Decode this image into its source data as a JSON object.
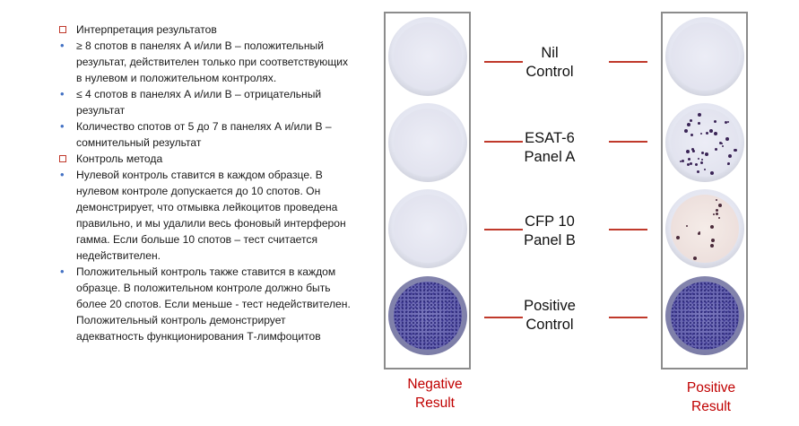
{
  "text_items": [
    {
      "type": "square",
      "text": "Интерпретация  результатов"
    },
    {
      "type": "dot",
      "text": "≥  8   спотов в панелях А и/или В – положительный результат, действителен только при  соответствующих в нулевом и положительном контролях."
    },
    {
      "type": "dot",
      "text": "≤ 4 спотов в панелях А и/или В – отрицательный результат"
    },
    {
      "type": "dot",
      "text": "Количество спотов от 5 до 7 в панелях А и/или В – сомнительный результат"
    },
    {
      "type": "square",
      "text": "Контроль метода"
    },
    {
      "type": "dot",
      "text": "Нулевой контроль ставится в каждом образце. В нулевом контроле допускается до 10 спотов. Он демонстрирует, что отмывка лейкоцитов проведена правильно, и мы удалили весь фоновый интерферон гамма. Если больше 10 спотов – тест  считается недействителен."
    },
    {
      "type": "dot",
      "text": "Положительный контроль также ставится в каждом образце. В  положительном контроле должно быть более 20 спотов. Если меньше  - тест недействителен. Положительный контроль демонстрирует адекватность функционирования Т-лимфоцитов"
    }
  ],
  "row_labels": [
    {
      "line1": "Nil",
      "line2": "Control"
    },
    {
      "line1": "ESAT-6",
      "line2": "Panel A"
    },
    {
      "line1": "CFP 10",
      "line2": "Panel B"
    },
    {
      "line1": "Positive",
      "line2": "Control"
    }
  ],
  "results": {
    "negative": {
      "line1": "Negative",
      "line2": "Result"
    },
    "positive": {
      "line1": "Positive",
      "line2": "Result"
    }
  },
  "colors": {
    "accent_red": "#c00000",
    "bullet_blue": "#4472c4",
    "strip_border": "#8c8c8c"
  }
}
